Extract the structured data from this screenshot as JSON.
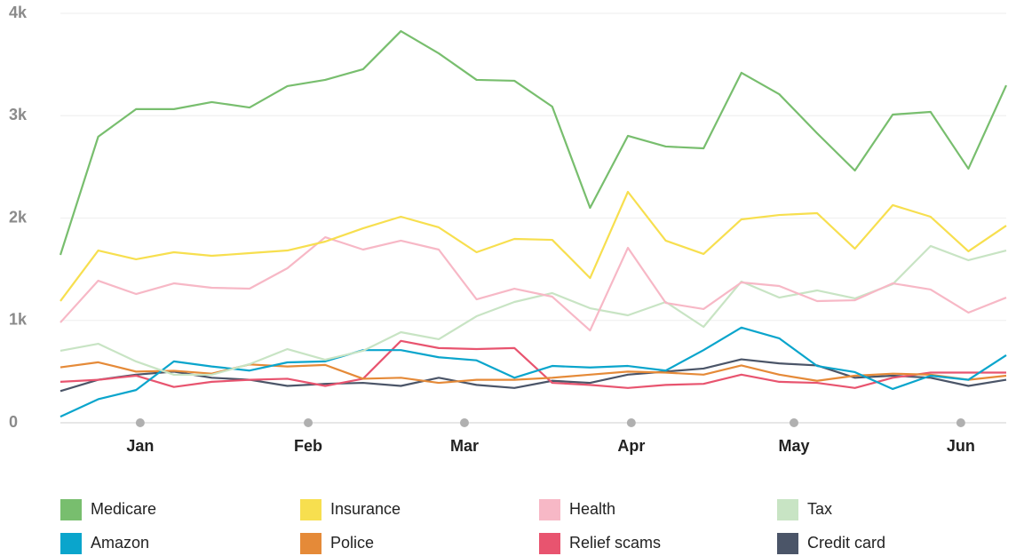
{
  "chart_data": {
    "type": "line",
    "x": [
      0,
      1,
      2,
      3,
      4,
      5,
      6,
      7,
      8,
      9,
      10,
      11,
      12,
      13,
      14,
      15,
      16,
      17,
      18,
      19,
      20,
      21,
      22,
      23,
      24,
      25
    ],
    "xlim": [
      0,
      25
    ],
    "xticks": [
      {
        "value": 2.11,
        "label": "Jan"
      },
      {
        "value": 6.55,
        "label": "Feb"
      },
      {
        "value": 10.68,
        "label": "Mar"
      },
      {
        "value": 15.09,
        "label": "Apr"
      },
      {
        "value": 19.39,
        "label": "May"
      },
      {
        "value": 23.8,
        "label": "Jun"
      }
    ],
    "ylim": [
      0,
      4000
    ],
    "yticks": [
      0,
      {
        "value": 1000,
        "label": "1k"
      },
      {
        "value": 2000,
        "label": "2k"
      },
      {
        "value": 3000,
        "label": "3k"
      },
      {
        "value": 4000,
        "label": "4k"
      }
    ],
    "grid": true,
    "legend": "bottom",
    "series": [
      {
        "name": "Medicare",
        "color": "#78be6e",
        "values": [
          1640,
          2795,
          3064,
          3064,
          3133,
          3080,
          3289,
          3350,
          3454,
          3826,
          3609,
          3350,
          3341,
          3089,
          2100,
          2803,
          2699,
          2681,
          3419,
          3210,
          2829,
          2464,
          3011,
          3037,
          2482,
          3297
        ]
      },
      {
        "name": "Insurance",
        "color": "#f7df4f",
        "values": [
          1189,
          1683,
          1597,
          1666,
          1631,
          1657,
          1683,
          1770,
          1900,
          2013,
          1909,
          1666,
          1796,
          1787,
          1414,
          2256,
          1779,
          1649,
          1987,
          2030,
          2048,
          1701,
          2126,
          2013,
          1675,
          1926
        ]
      },
      {
        "name": "Health",
        "color": "#f7b8c6",
        "values": [
          980,
          1388,
          1258,
          1362,
          1319,
          1310,
          1510,
          1813,
          1692,
          1779,
          1692,
          1206,
          1310,
          1232,
          902,
          1709,
          1171,
          1111,
          1371,
          1336,
          1189,
          1197,
          1362,
          1302,
          1076,
          1223
        ]
      },
      {
        "name": "Tax",
        "color": "#c8e4c4",
        "values": [
          703,
          772,
          599,
          469,
          469,
          573,
          720,
          616,
          703,
          885,
          816,
          1041,
          1180,
          1267,
          1119,
          1050,
          1180,
          937,
          1380,
          1223,
          1293,
          1215,
          1354,
          1727,
          1588,
          1683
        ]
      },
      {
        "name": "Amazon",
        "color": "#0aa5cc",
        "values": [
          60,
          230,
          320,
          600,
          550,
          510,
          590,
          600,
          710,
          710,
          640,
          610,
          440,
          555,
          540,
          555,
          510,
          710,
          930,
          825,
          555,
          495,
          330,
          460,
          420,
          660
        ]
      },
      {
        "name": "Police",
        "color": "#e58a38",
        "values": [
          542,
          591,
          500,
          508,
          480,
          570,
          550,
          565,
          430,
          440,
          390,
          420,
          420,
          440,
          470,
          500,
          490,
          470,
          560,
          470,
          410,
          460,
          480,
          470,
          420,
          460
        ]
      },
      {
        "name": "Relief scams",
        "color": "#e8546f",
        "values": [
          400,
          420,
          460,
          350,
          400,
          420,
          430,
          360,
          430,
          800,
          730,
          720,
          730,
          390,
          370,
          340,
          370,
          380,
          470,
          400,
          390,
          340,
          440,
          490,
          490,
          490
        ]
      },
      {
        "name": "Credit card",
        "color": "#4b5568",
        "values": [
          310,
          420,
          470,
          500,
          440,
          420,
          360,
          380,
          390,
          360,
          440,
          370,
          340,
          410,
          390,
          470,
          500,
          530,
          620,
          580,
          560,
          440,
          460,
          440,
          360,
          420
        ]
      }
    ]
  }
}
